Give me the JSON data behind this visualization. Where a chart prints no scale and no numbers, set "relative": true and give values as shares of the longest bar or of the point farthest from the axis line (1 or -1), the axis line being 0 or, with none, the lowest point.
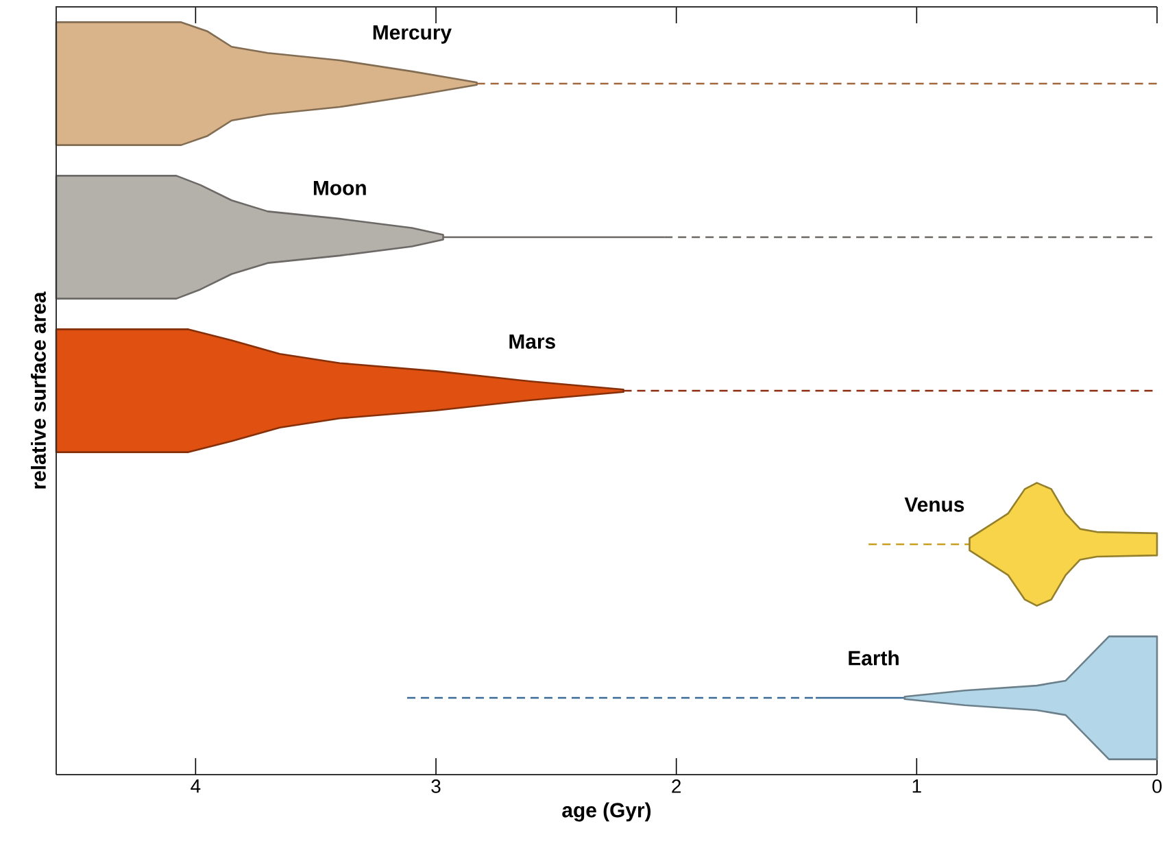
{
  "chart_data": [
    {
      "type": "area",
      "relative": true,
      "xlim": [
        4.58,
        0
      ],
      "xticks": [
        4,
        3,
        2,
        1,
        0
      ],
      "tick_labels": false,
      "series": [
        {
          "name": "Mercury",
          "color": "#d9b48a",
          "x": [
            4.58,
            4.06,
            3.95,
            3.85,
            3.7,
            3.4,
            3.1,
            2.83
          ],
          "values": [
            1,
            1,
            0.85,
            0.6,
            0.5,
            0.38,
            0.2,
            0.02
          ]
        },
        {
          "type": "line",
          "line_style": "dashed",
          "color": "#a0683e",
          "x": [
            2.83,
            0
          ],
          "values": [
            0,
            0
          ]
        }
      ]
    },
    {
      "type": "area",
      "relative": true,
      "xlim": [
        4.58,
        0
      ],
      "tick_labels": false,
      "series": [
        {
          "name": "Moon",
          "color": "#b4b0aa",
          "x": [
            4.58,
            4.08,
            3.98,
            3.85,
            3.7,
            3.4,
            3.1,
            2.97
          ],
          "values": [
            1,
            1,
            0.85,
            0.6,
            0.42,
            0.3,
            0.15,
            0.04
          ]
        },
        {
          "type": "line",
          "line_style": "solid",
          "color": "#6b6763",
          "x": [
            2.97,
            2.05
          ],
          "values": [
            0,
            0
          ]
        },
        {
          "type": "line",
          "line_style": "dashed",
          "color": "#6b6763",
          "x": [
            2.05,
            0
          ],
          "values": [
            0,
            0
          ]
        }
      ]
    },
    {
      "type": "area",
      "relative": true,
      "xlim": [
        4.58,
        0
      ],
      "tick_labels": false,
      "ylabel": "relative surface area",
      "series": [
        {
          "name": "Mars",
          "color": "#e05010",
          "x": [
            4.58,
            4.03,
            3.85,
            3.65,
            3.4,
            3.0,
            2.6,
            2.22
          ],
          "values": [
            1,
            1,
            0.82,
            0.6,
            0.45,
            0.32,
            0.15,
            0.02
          ]
        },
        {
          "type": "line",
          "line_style": "dashed",
          "color": "#8b2a0e",
          "x": [
            2.22,
            0
          ],
          "values": [
            0,
            0
          ]
        }
      ]
    },
    {
      "type": "area",
      "relative": true,
      "xlim": [
        4.58,
        0
      ],
      "tick_labels": false,
      "series": [
        {
          "type": "line",
          "line_style": "dashed",
          "color": "#c8a020",
          "x": [
            1.2,
            0.78
          ],
          "values": [
            0,
            0
          ]
        },
        {
          "name": "Venus",
          "color": "#f7d44a",
          "x": [
            0.78,
            0.72,
            0.62,
            0.55,
            0.5,
            0.44,
            0.38,
            0.32,
            0.25,
            0
          ],
          "values": [
            0.1,
            0.25,
            0.5,
            0.9,
            1,
            0.9,
            0.5,
            0.25,
            0.2,
            0.18
          ]
        }
      ]
    },
    {
      "type": "area",
      "relative": true,
      "xlim": [
        4.58,
        0
      ],
      "xticks": [
        4,
        3,
        2,
        1,
        0
      ],
      "tick_labels": "x",
      "xlabel": "age (Gyr)",
      "series": [
        {
          "type": "line",
          "line_style": "dashed",
          "color": "#3a6a96",
          "x": [
            3.12,
            1.42
          ],
          "values": [
            0,
            0
          ]
        },
        {
          "type": "line",
          "line_style": "solid",
          "color": "#3a6a96",
          "x": [
            1.42,
            1.05
          ],
          "values": [
            0,
            0
          ]
        },
        {
          "name": "Earth",
          "color": "#b3d6e8",
          "x": [
            1.05,
            0.8,
            0.5,
            0.38,
            0.2,
            0
          ],
          "values": [
            0.02,
            0.12,
            0.2,
            0.28,
            1,
            1
          ]
        }
      ]
    }
  ]
}
